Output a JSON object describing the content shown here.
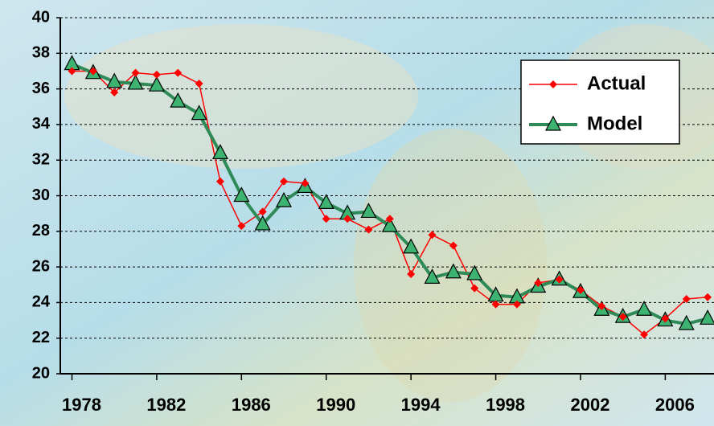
{
  "chart_data": {
    "type": "line",
    "x": [
      1978,
      1979,
      1980,
      1981,
      1982,
      1983,
      1984,
      1985,
      1986,
      1987,
      1988,
      1989,
      1990,
      1991,
      1992,
      1993,
      1994,
      1995,
      1996,
      1997,
      1998,
      1999,
      2000,
      2001,
      2002,
      2003,
      2004,
      2005,
      2006,
      2007,
      2008
    ],
    "series": [
      {
        "name": "Actual",
        "color": "#ff0000",
        "marker": "diamond",
        "values": [
          37.0,
          37.0,
          35.8,
          36.9,
          36.8,
          36.9,
          36.3,
          30.8,
          28.3,
          29.1,
          30.8,
          30.7,
          28.7,
          28.7,
          28.1,
          28.7,
          25.6,
          27.8,
          27.2,
          24.8,
          23.9,
          23.9,
          25.1,
          25.3,
          24.7,
          23.8,
          23.2,
          22.2,
          23.1,
          24.2,
          24.3
        ]
      },
      {
        "name": "Model",
        "color": "#2e8b57",
        "marker": "triangle",
        "values": [
          37.4,
          36.9,
          36.4,
          36.3,
          36.2,
          35.3,
          34.6,
          32.4,
          30.0,
          28.4,
          29.7,
          30.5,
          29.6,
          29.0,
          29.1,
          28.3,
          27.1,
          25.4,
          25.7,
          25.6,
          24.4,
          24.3,
          24.9,
          25.3,
          24.6,
          23.6,
          23.2,
          23.6,
          23.0,
          22.8,
          23.1
        ]
      }
    ],
    "xlim": [
      1977.45,
      2008.3
    ],
    "xticks": [
      1978,
      1982,
      1986,
      1990,
      1994,
      1998,
      2002,
      2006
    ],
    "ylim": [
      20,
      40
    ],
    "yticks": [
      20,
      22,
      24,
      26,
      28,
      30,
      32,
      34,
      36,
      38,
      40
    ],
    "grid": true,
    "legend": "upper right"
  }
}
